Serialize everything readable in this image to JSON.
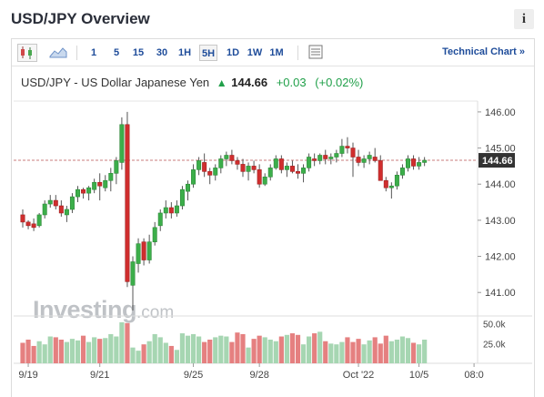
{
  "header": {
    "title": "USD/JPY Overview",
    "info_label": "i"
  },
  "toolbar": {
    "timeframes": [
      "1",
      "5",
      "15",
      "30",
      "1H",
      "5H",
      "1D",
      "1W",
      "1M"
    ],
    "active_timeframe": "5H",
    "tech_link": "Technical Chart »",
    "icons": [
      "candlestick-icon",
      "area-chart-icon",
      "table-view-icon"
    ]
  },
  "quote": {
    "name": "USD/JPY - US Dollar Japanese Yen",
    "arrow": "▲",
    "price": "144.66",
    "change": "+0.03",
    "change_pct": "(+0.02%)"
  },
  "watermark": {
    "brand": "Investing",
    "suffix": ".com"
  },
  "colors": {
    "up": "#3cae4a",
    "down": "#d02e2e",
    "vol_up": "#a6d6b2",
    "vol_down": "#e58080",
    "accent": "#1e4c9a",
    "last_price_bg": "#333333"
  },
  "chart_data": {
    "type": "candlestick",
    "ylim": [
      140.35,
      146.3
    ],
    "y_ticks": [
      "146.00",
      "145.00",
      "144.00",
      "143.00",
      "142.00",
      "141.00"
    ],
    "y_tick_values": [
      146,
      145,
      144,
      143,
      142,
      141
    ],
    "x_ticks": [
      "9/19",
      "9/21",
      "9/25",
      "9/28",
      "Oct '22",
      "10/5",
      "08:0"
    ],
    "x_tick_positions": [
      1,
      14,
      31,
      43,
      61,
      72,
      82
    ],
    "last_price": "144.66",
    "last_price_value": 144.66,
    "volume_ticks": [
      "50.0k",
      "25.0k"
    ],
    "volume_tick_values": [
      50000,
      25000
    ],
    "volume_max": 60000,
    "candles": [
      [
        143.15,
        143.3,
        142.8,
        142.95
      ],
      [
        142.95,
        143.0,
        142.75,
        142.85
      ],
      [
        142.9,
        143.05,
        142.7,
        142.8
      ],
      [
        142.85,
        143.2,
        142.8,
        143.15
      ],
      [
        143.15,
        143.55,
        143.05,
        143.45
      ],
      [
        143.45,
        143.7,
        143.35,
        143.55
      ],
      [
        143.55,
        143.7,
        143.3,
        143.4
      ],
      [
        143.4,
        143.55,
        143.1,
        143.2
      ],
      [
        143.15,
        143.4,
        142.95,
        143.3
      ],
      [
        143.3,
        143.75,
        143.2,
        143.65
      ],
      [
        143.65,
        143.95,
        143.5,
        143.85
      ],
      [
        143.85,
        143.9,
        143.6,
        143.75
      ],
      [
        143.75,
        143.95,
        143.55,
        143.9
      ],
      [
        143.85,
        144.15,
        143.75,
        144.05
      ],
      [
        144.05,
        144.3,
        143.55,
        143.95
      ],
      [
        143.9,
        144.25,
        143.8,
        144.1
      ],
      [
        144.1,
        144.45,
        143.8,
        144.3
      ],
      [
        144.3,
        144.75,
        144.0,
        144.65
      ],
      [
        144.6,
        145.85,
        144.4,
        145.65
      ],
      [
        145.65,
        146.0,
        141.15,
        141.3
      ],
      [
        141.2,
        142.0,
        140.5,
        141.85
      ],
      [
        141.8,
        142.5,
        141.55,
        142.35
      ],
      [
        142.4,
        142.5,
        141.75,
        141.9
      ],
      [
        141.9,
        142.6,
        141.8,
        142.4
      ],
      [
        142.4,
        142.95,
        142.3,
        142.8
      ],
      [
        142.85,
        143.3,
        142.7,
        143.2
      ],
      [
        143.2,
        143.55,
        143.05,
        143.35
      ],
      [
        143.35,
        143.5,
        143.05,
        143.2
      ],
      [
        143.2,
        143.55,
        143.1,
        143.4
      ],
      [
        143.4,
        143.95,
        143.3,
        143.85
      ],
      [
        143.8,
        144.1,
        143.55,
        144.0
      ],
      [
        144.0,
        144.55,
        143.9,
        144.4
      ],
      [
        144.4,
        144.75,
        144.25,
        144.65
      ],
      [
        144.6,
        144.85,
        144.2,
        144.35
      ],
      [
        144.35,
        144.45,
        144.0,
        144.25
      ],
      [
        144.25,
        144.55,
        144.1,
        144.45
      ],
      [
        144.45,
        144.8,
        144.3,
        144.7
      ],
      [
        144.7,
        144.9,
        144.5,
        144.8
      ],
      [
        144.8,
        144.95,
        144.55,
        144.65
      ],
      [
        144.65,
        144.75,
        144.4,
        144.55
      ],
      [
        144.55,
        144.7,
        144.2,
        144.35
      ],
      [
        144.35,
        144.6,
        144.1,
        144.5
      ],
      [
        144.5,
        144.65,
        144.3,
        144.4
      ],
      [
        144.4,
        144.55,
        143.9,
        144.0
      ],
      [
        144.0,
        144.3,
        143.95,
        144.2
      ],
      [
        144.2,
        144.55,
        144.1,
        144.45
      ],
      [
        144.45,
        144.8,
        144.4,
        144.7
      ],
      [
        144.7,
        144.8,
        144.3,
        144.4
      ],
      [
        144.4,
        144.6,
        144.2,
        144.5
      ],
      [
        144.5,
        144.65,
        144.3,
        144.35
      ],
      [
        144.35,
        144.55,
        144.15,
        144.3
      ],
      [
        144.3,
        144.55,
        144.05,
        144.45
      ],
      [
        144.45,
        144.85,
        144.35,
        144.75
      ],
      [
        144.7,
        144.85,
        144.5,
        144.65
      ],
      [
        144.65,
        144.85,
        144.55,
        144.8
      ],
      [
        144.8,
        144.95,
        144.55,
        144.7
      ],
      [
        144.7,
        144.85,
        144.55,
        144.75
      ],
      [
        144.75,
        144.95,
        144.6,
        144.85
      ],
      [
        144.85,
        145.25,
        144.75,
        145.05
      ],
      [
        145.05,
        145.3,
        144.85,
        145.0
      ],
      [
        145.0,
        145.15,
        144.2,
        144.75
      ],
      [
        144.75,
        144.95,
        144.5,
        144.6
      ],
      [
        144.6,
        144.8,
        144.45,
        144.7
      ],
      [
        144.7,
        144.9,
        144.55,
        144.8
      ],
      [
        144.75,
        145.0,
        144.6,
        144.65
      ],
      [
        144.65,
        144.8,
        144.1,
        144.1
      ],
      [
        144.1,
        144.2,
        143.8,
        143.9
      ],
      [
        143.9,
        144.05,
        143.6,
        143.95
      ],
      [
        143.95,
        144.35,
        143.85,
        144.25
      ],
      [
        144.25,
        144.55,
        144.15,
        144.45
      ],
      [
        144.45,
        144.8,
        144.35,
        144.7
      ],
      [
        144.7,
        144.8,
        144.4,
        144.5
      ],
      [
        144.5,
        144.75,
        144.4,
        144.6
      ],
      [
        144.6,
        144.75,
        144.5,
        144.66
      ]
    ],
    "volumes": [
      26000,
      30000,
      22000,
      28000,
      24000,
      34000,
      33000,
      30000,
      27000,
      31000,
      29000,
      35000,
      27000,
      33000,
      31000,
      32000,
      37000,
      34000,
      52000,
      51000,
      20000,
      16000,
      24000,
      28000,
      37000,
      33000,
      26000,
      22000,
      17000,
      38000,
      35000,
      37000,
      34000,
      27000,
      30000,
      33000,
      35000,
      34000,
      27000,
      39000,
      37000,
      20000,
      31000,
      35000,
      33000,
      30000,
      28000,
      34000,
      36000,
      38000,
      36000,
      24000,
      34000,
      38000,
      40000,
      28000,
      25000,
      24000,
      27000,
      33000,
      27000,
      31000,
      24000,
      29000,
      33000,
      25000,
      35000,
      28000,
      30000,
      34000,
      32000,
      26000,
      24000,
      30000
    ]
  }
}
